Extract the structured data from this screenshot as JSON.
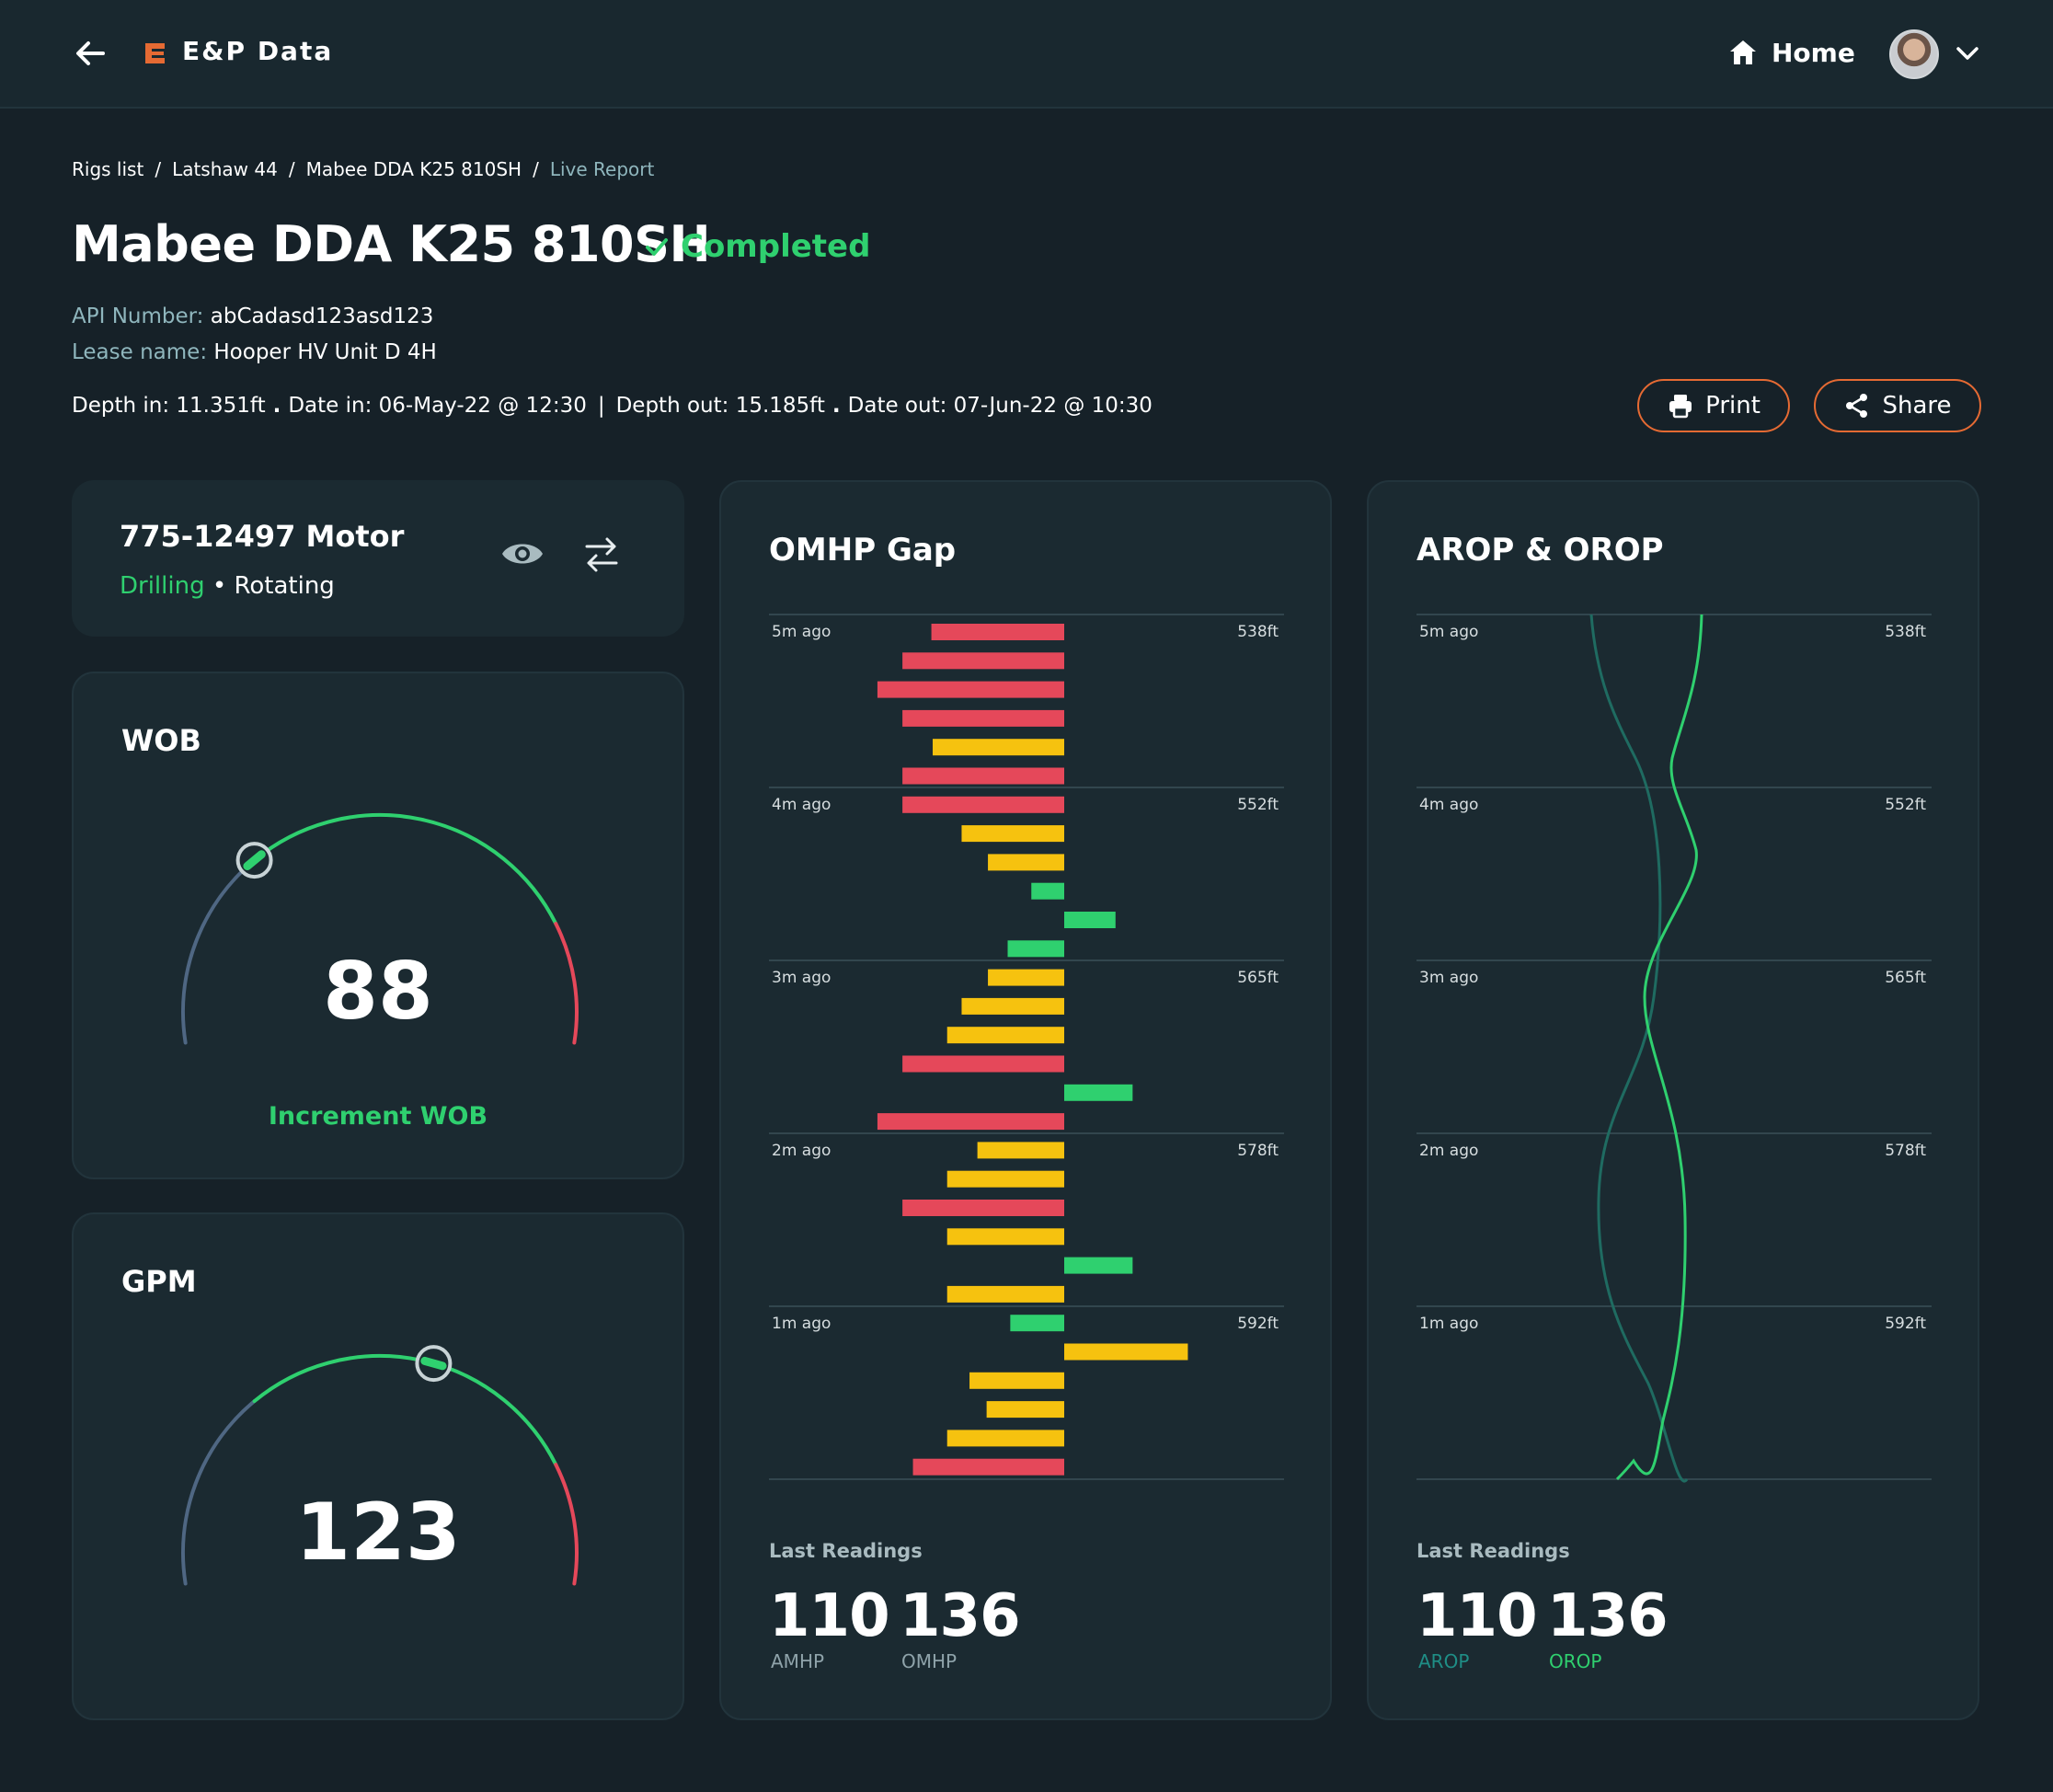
{
  "app": {
    "title": "E&P Data"
  },
  "nav": {
    "home_label": "Home"
  },
  "breadcrumb": [
    "Rigs list",
    "Latshaw 44",
    "Mabee DDA K25 810SH",
    "Live Report"
  ],
  "header": {
    "title": "Mabee DDA K25 810SH",
    "status": "Completed",
    "api_label": "API Number:",
    "api_value": "abCadasd123asd123",
    "lease_label": "Lease name:",
    "lease_value": "Hooper HV Unit D 4H",
    "depth_in": "Depth in: 11.351ft",
    "date_in": "Date in: 06-May-22 @ 12:30",
    "depth_out": "Depth out: 15.185ft",
    "date_out": "Date out: 07-Jun-22 @ 10:30"
  },
  "actions": {
    "print": "Print",
    "share": "Share"
  },
  "motor": {
    "title": "775-12497 Motor",
    "mode": "Drilling",
    "state": "Rotating"
  },
  "gauges": {
    "wob": {
      "label": "WOB",
      "value": "88",
      "hint": "Increment WOB",
      "marker_fraction": 0.3
    },
    "gpm": {
      "label": "GPM",
      "value": "123",
      "marker_fraction": 0.58
    }
  },
  "colors": {
    "green": "#2fd06f",
    "red": "#e5485a",
    "yellow": "#f6c20f",
    "teal": "#1f6b61",
    "orange": "#e56a33",
    "blue_gray": "#4f6783"
  },
  "omhp": {
    "title": "OMHP Gap",
    "time_labels": [
      "5m ago",
      "4m ago",
      "3m ago",
      "2m ago",
      "1m ago"
    ],
    "depth_labels": [
      "538ft",
      "552ft",
      "565ft",
      "578ft",
      "592ft"
    ],
    "bars": [
      {
        "value": -101,
        "status": "red"
      },
      {
        "value": -123,
        "status": "red"
      },
      {
        "value": -142,
        "status": "red"
      },
      {
        "value": -123,
        "status": "red"
      },
      {
        "value": -100,
        "status": "yellow"
      },
      {
        "value": -123,
        "status": "red"
      },
      {
        "value": -123,
        "status": "red"
      },
      {
        "value": -78,
        "status": "yellow"
      },
      {
        "value": -58,
        "status": "yellow"
      },
      {
        "value": -25,
        "status": "green"
      },
      {
        "value": 39,
        "status": "green"
      },
      {
        "value": -43,
        "status": "green"
      },
      {
        "value": -58,
        "status": "yellow"
      },
      {
        "value": -78,
        "status": "yellow"
      },
      {
        "value": -89,
        "status": "yellow"
      },
      {
        "value": -123,
        "status": "red"
      },
      {
        "value": 52,
        "status": "green"
      },
      {
        "value": -142,
        "status": "red"
      },
      {
        "value": -66,
        "status": "yellow"
      },
      {
        "value": -89,
        "status": "yellow"
      },
      {
        "value": -123,
        "status": "red"
      },
      {
        "value": -89,
        "status": "yellow"
      },
      {
        "value": 52,
        "status": "green"
      },
      {
        "value": -89,
        "status": "yellow"
      },
      {
        "value": -41,
        "status": "green"
      },
      {
        "value": 94,
        "status": "yellow"
      },
      {
        "value": -72,
        "status": "yellow"
      },
      {
        "value": -59,
        "status": "yellow"
      },
      {
        "value": -89,
        "status": "yellow"
      },
      {
        "value": -115,
        "status": "red"
      }
    ],
    "last_readings_label": "Last Readings",
    "readings": [
      {
        "value": "110",
        "label": "AMHP"
      },
      {
        "value": "136",
        "label": "OMHP"
      }
    ]
  },
  "arop": {
    "title": "AROP & OROP",
    "time_labels": [
      "5m ago",
      "4m ago",
      "3m ago",
      "2m ago",
      "1m ago"
    ],
    "depth_labels": [
      "538ft",
      "552ft",
      "565ft",
      "578ft",
      "592ft"
    ],
    "last_readings_label": "Last Readings",
    "readings": [
      {
        "value": "110",
        "label": "AROP"
      },
      {
        "value": "136",
        "label": "OROP"
      }
    ]
  }
}
